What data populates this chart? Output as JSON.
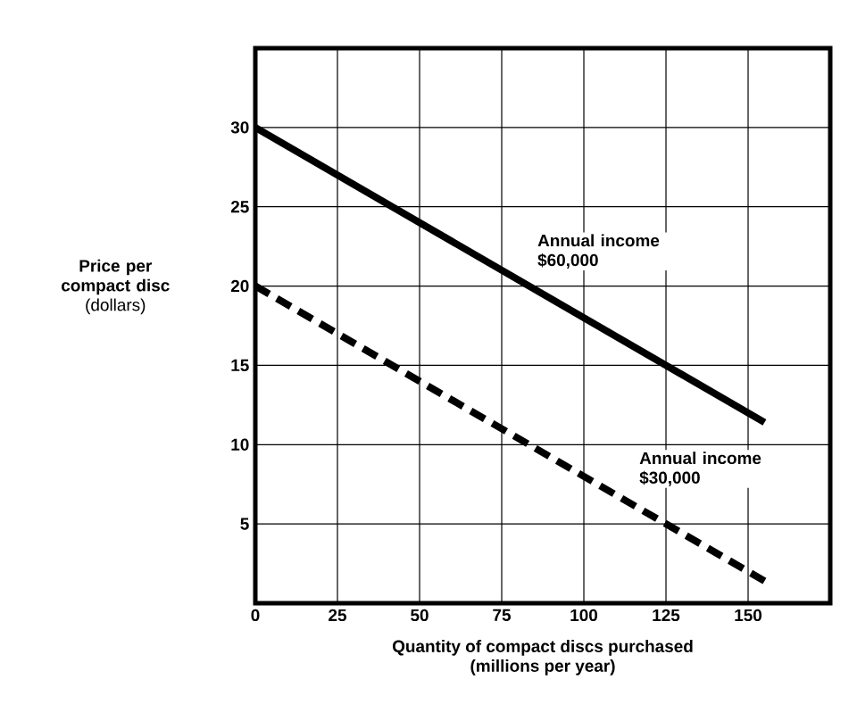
{
  "chart_data": {
    "type": "line",
    "xlabel": "**Quantity of compact discs purchased**\n(millions per year)",
    "ylabel": "**Price per compact disc**\n(dollars)",
    "xlim": [
      0,
      175
    ],
    "ylim": [
      0,
      35
    ],
    "xticks": [
      0,
      25,
      50,
      75,
      100,
      125,
      150,
      {
        "value": 175,
        "label": null
      }
    ],
    "yticks": [
      {
        "value": 0,
        "label": null
      },
      5,
      10,
      15,
      20,
      25,
      30,
      {
        "value": 35,
        "label": null
      }
    ],
    "grid": true,
    "x": [
      0,
      155
    ],
    "series": [
      {
        "name": "**Annual income $60,000**",
        "color": "#000000",
        "line_style": "solid",
        "values": [
          30,
          11.4
        ]
      },
      {
        "name": "**Annual income $30,000**",
        "color": "#000000",
        "line_style": "dashed",
        "values": [
          20,
          1.4
        ]
      }
    ]
  }
}
